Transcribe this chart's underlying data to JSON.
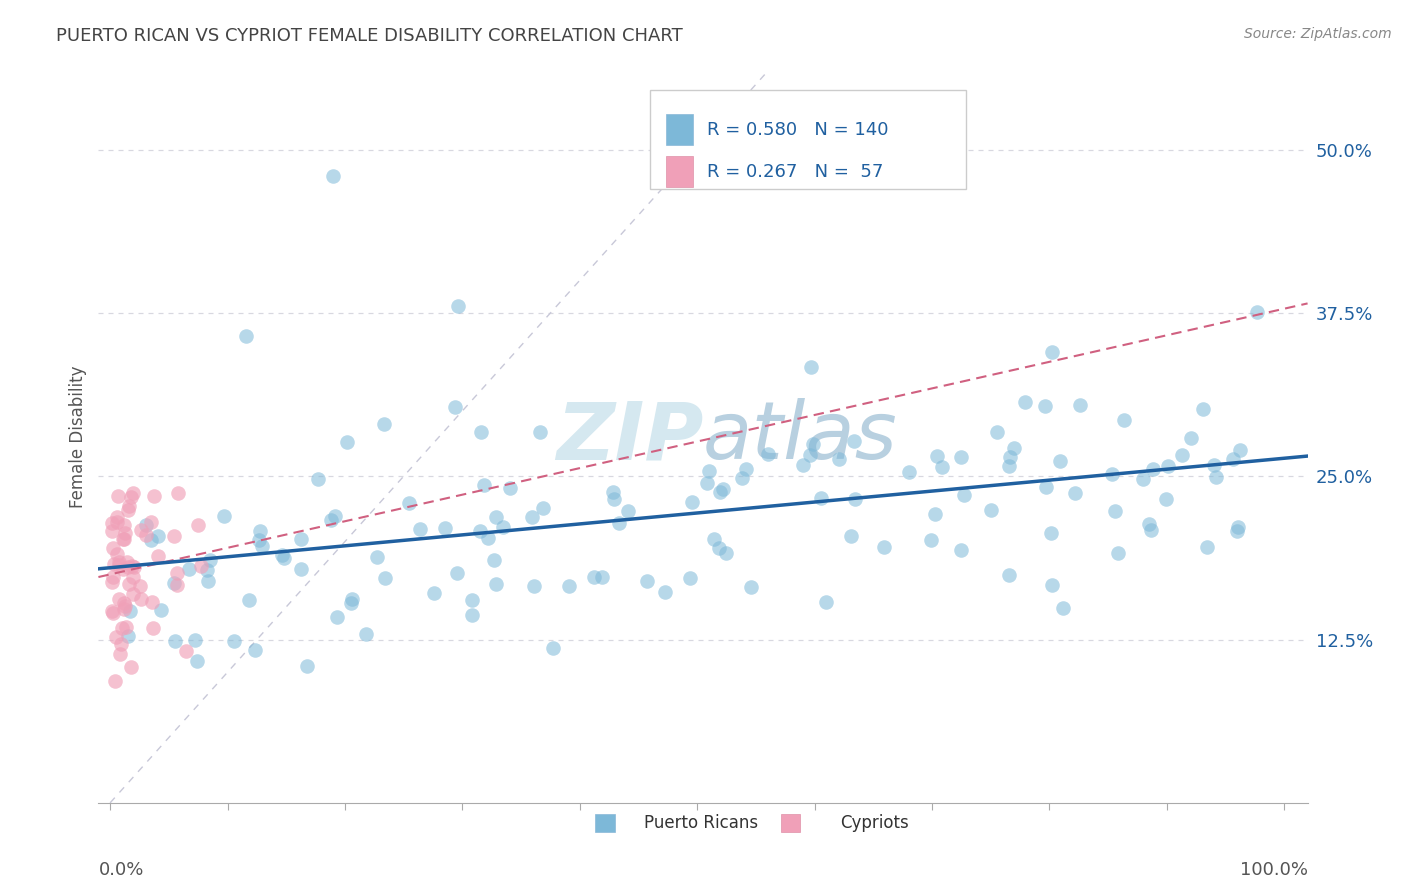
{
  "title": "PUERTO RICAN VS CYPRIOT FEMALE DISABILITY CORRELATION CHART",
  "source": "Source: ZipAtlas.com",
  "ylabel": "Female Disability",
  "ytick_labels": [
    "12.5%",
    "25.0%",
    "37.5%",
    "50.0%"
  ],
  "ytick_values": [
    0.125,
    0.25,
    0.375,
    0.5
  ],
  "xlim": [
    -0.01,
    1.02
  ],
  "ylim": [
    0.0,
    0.56
  ],
  "legend_r1": "0.580",
  "legend_n1": "140",
  "legend_r2": "0.267",
  "legend_n2": "57",
  "blue_color": "#7db8d8",
  "pink_color": "#f0a0b8",
  "blue_line_color": "#2060a0",
  "pink_line_color": "#d06080",
  "diag_color": "#c8c8d8",
  "title_color": "#444444",
  "source_color": "#888888",
  "axis_color": "#555555",
  "watermark_color": "#d5e8f0",
  "grid_color": "#d8d8e0"
}
